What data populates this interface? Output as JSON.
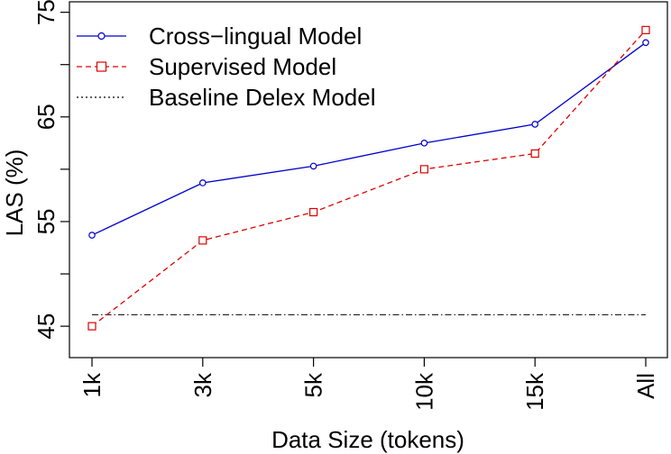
{
  "chart_data": {
    "type": "line",
    "title": "",
    "xlabel": "Data Size (tokens)",
    "ylabel": "LAS (%)",
    "categories": [
      "1k",
      "3k",
      "5k",
      "10k",
      "15k",
      "All"
    ],
    "ylim": [
      42,
      76
    ],
    "yticks": [
      45,
      50,
      55,
      60,
      65,
      70,
      75
    ],
    "ytick_labels": [
      "45",
      "",
      "55",
      "",
      "65",
      "",
      "75"
    ],
    "grid": false,
    "legend_position": "top-left",
    "series": [
      {
        "name": "Cross−lingual Model",
        "values": [
          53.7,
          58.7,
          60.3,
          62.5,
          64.3,
          72.1
        ],
        "color": "#0000cc",
        "line_style": "solid",
        "marker": "circle"
      },
      {
        "name": "Supervised Model",
        "values": [
          45.0,
          53.2,
          55.9,
          60.0,
          61.5,
          73.3
        ],
        "color": "#dd0000",
        "line_style": "dashed",
        "marker": "square"
      }
    ],
    "reference_lines": [
      {
        "name": "Baseline Delex Model",
        "value": 46.1,
        "color": "#000000",
        "line_style": "dotted"
      }
    ]
  }
}
